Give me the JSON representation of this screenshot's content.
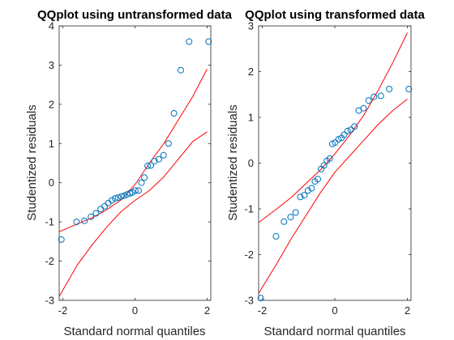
{
  "chart_data": [
    {
      "type": "scatter",
      "title": "QQplot using untransformed data",
      "xlabel": "Standard normal quantiles",
      "ylabel": "Studentized residuals",
      "xlim": [
        -2.1,
        2.1
      ],
      "ylim": [
        -3,
        4
      ],
      "xticks": [
        -2,
        0,
        2
      ],
      "yticks": [
        -3,
        -2,
        -1,
        0,
        1,
        2,
        3,
        4
      ],
      "grid": false,
      "points_color": "#0072bd",
      "envelope_color": "#ff0000",
      "points": {
        "x": [
          -2.04,
          -1.62,
          -1.4,
          -1.22,
          -1.08,
          -0.95,
          -0.84,
          -0.74,
          -0.64,
          -0.55,
          -0.47,
          -0.38,
          -0.3,
          -0.22,
          -0.14,
          -0.07,
          0.01,
          0.1,
          0.18,
          0.26,
          0.35,
          0.44,
          0.54,
          0.66,
          0.79,
          0.93,
          1.08,
          1.27,
          1.5,
          2.04
        ],
        "y": [
          -1.45,
          -1.0,
          -0.97,
          -0.87,
          -0.78,
          -0.67,
          -0.6,
          -0.52,
          -0.45,
          -0.4,
          -0.38,
          -0.35,
          -0.33,
          -0.3,
          -0.27,
          -0.25,
          -0.2,
          -0.2,
          0.0,
          0.13,
          0.43,
          0.44,
          0.55,
          0.6,
          0.7,
          1.0,
          1.77,
          2.87,
          3.6,
          3.6
        ]
      },
      "envelope_upper": {
        "x": [
          -2.1,
          -1.6,
          -1.2,
          -0.8,
          -0.4,
          0.0,
          0.4,
          0.8,
          1.2,
          1.6,
          2.0
        ],
        "y": [
          -1.25,
          -1.05,
          -0.9,
          -0.7,
          -0.45,
          -0.05,
          0.5,
          1.0,
          1.6,
          2.2,
          2.9
        ]
      },
      "envelope_lower": {
        "x": [
          -2.1,
          -1.6,
          -1.2,
          -0.8,
          -0.4,
          0.0,
          0.4,
          0.8,
          1.2,
          1.6,
          2.0
        ],
        "y": [
          -2.9,
          -2.1,
          -1.6,
          -1.15,
          -0.75,
          -0.45,
          -0.2,
          0.15,
          0.6,
          1.05,
          1.3
        ]
      }
    },
    {
      "type": "scatter",
      "title": "QQplot using transformed data",
      "xlabel": "Standard normal quantiles",
      "ylabel": "Studentized residuals",
      "xlim": [
        -2.1,
        2.1
      ],
      "ylim": [
        -3,
        3
      ],
      "xticks": [
        -2,
        0,
        2
      ],
      "yticks": [
        -3,
        -2,
        -1,
        0,
        1,
        2,
        3
      ],
      "grid": false,
      "points_color": "#0072bd",
      "envelope_color": "#ff0000",
      "points": {
        "x": [
          -2.04,
          -1.62,
          -1.4,
          -1.22,
          -1.08,
          -0.95,
          -0.84,
          -0.74,
          -0.64,
          -0.55,
          -0.47,
          -0.38,
          -0.3,
          -0.22,
          -0.14,
          -0.07,
          0.01,
          0.1,
          0.18,
          0.26,
          0.35,
          0.44,
          0.54,
          0.66,
          0.79,
          0.93,
          1.08,
          1.27,
          1.5,
          2.04
        ],
        "y": [
          -2.95,
          -1.6,
          -1.28,
          -1.18,
          -1.08,
          -0.74,
          -0.7,
          -0.6,
          -0.55,
          -0.4,
          -0.35,
          -0.13,
          -0.05,
          0.05,
          0.1,
          0.42,
          0.45,
          0.52,
          0.55,
          0.62,
          0.7,
          0.73,
          0.8,
          1.15,
          1.2,
          1.37,
          1.45,
          1.47,
          1.62,
          1.62
        ]
      },
      "envelope_upper": {
        "x": [
          -2.1,
          -1.6,
          -1.2,
          -0.8,
          -0.4,
          0.0,
          0.4,
          0.8,
          1.2,
          1.6,
          2.0
        ],
        "y": [
          -1.3,
          -1.0,
          -0.75,
          -0.45,
          -0.15,
          0.2,
          0.6,
          1.05,
          1.6,
          2.2,
          2.85
        ]
      },
      "envelope_lower": {
        "x": [
          -2.1,
          -1.6,
          -1.2,
          -0.8,
          -0.4,
          0.0,
          0.4,
          0.8,
          1.2,
          1.6,
          2.0
        ],
        "y": [
          -2.85,
          -2.2,
          -1.65,
          -1.15,
          -0.65,
          -0.2,
          0.15,
          0.5,
          0.85,
          1.15,
          1.4
        ]
      }
    }
  ]
}
